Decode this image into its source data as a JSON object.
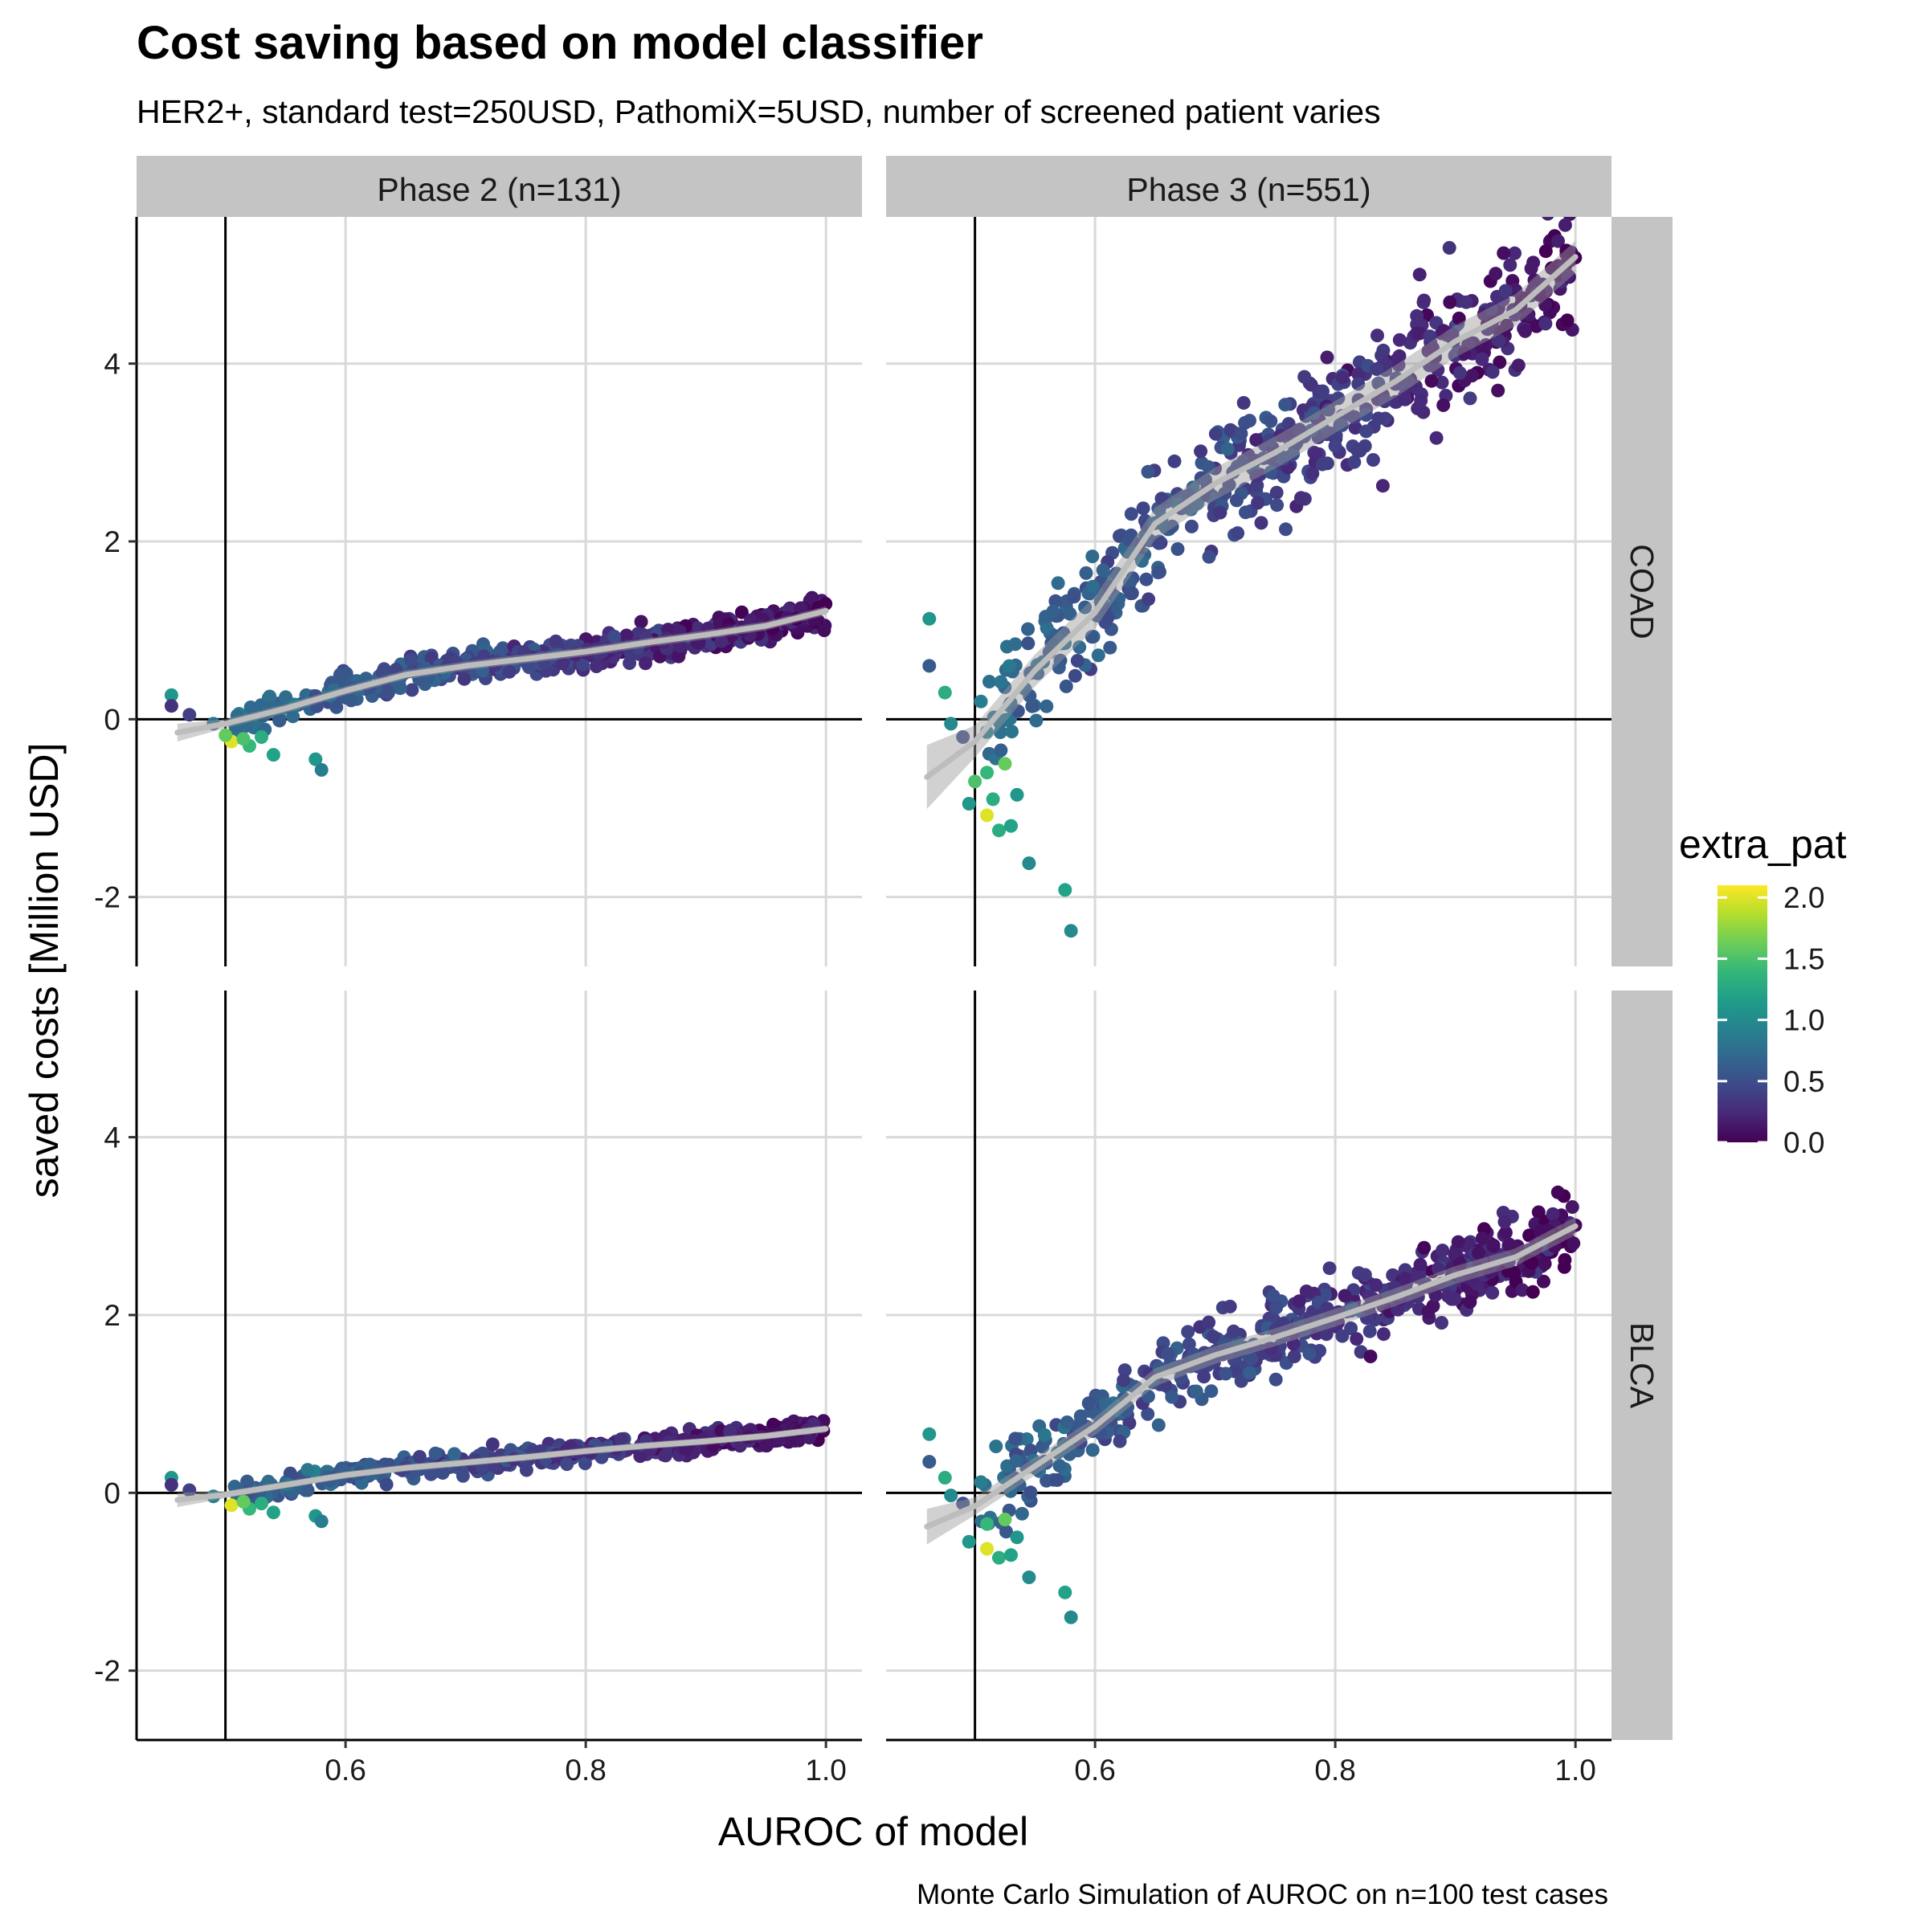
{
  "chart_data": {
    "type": "scatter",
    "title": "Cost saving based on model classifier",
    "subtitle": "HER2+, standard test=250USD, PathomiX=5USD, number of screened patient varies",
    "xlabel": "AUROC of model",
    "ylabel": "saved costs [Million USD]",
    "caption": "Monte Carlo Simulation of AUROC on n=100 test cases",
    "xlim": [
      0.426,
      1.03
    ],
    "ylim": [
      -2.78,
      5.65
    ],
    "x_ticks": [
      0.6,
      0.8,
      1.0
    ],
    "x_tick_labels": [
      "0.6",
      "0.8",
      "1.0"
    ],
    "y_ticks": [
      -2,
      0,
      2,
      4
    ],
    "y_tick_labels": [
      "-2",
      "0",
      "2",
      "4"
    ],
    "reference_lines": {
      "vline_x": 0.5,
      "hline_y": 0
    },
    "grid": true,
    "smoother": "loess with confidence band (grey)",
    "col_facets": [
      "Phase 2 (n=131)",
      "Phase 3 (n=551)"
    ],
    "row_facets": [
      "COAD",
      "BLCA"
    ],
    "color_scale": {
      "name": "extra_pat",
      "palette": "viridis",
      "range": [
        0,
        2.1
      ],
      "ticks": [
        0.0,
        0.5,
        1.0,
        1.5,
        2.0
      ],
      "tick_labels": [
        "0.0",
        "0.5",
        "1.0",
        "1.5",
        "2.0"
      ],
      "colors": [
        "#440154",
        "#482878",
        "#3E4A89",
        "#31688E",
        "#26828E",
        "#1F9E89",
        "#35B779",
        "#6DCD59",
        "#B4DE2C",
        "#FDE725"
      ]
    },
    "panels": [
      {
        "name": "Phase 2 COAD",
        "facet_col": "Phase 2 (n=131)",
        "facet_row": "COAD",
        "trend": {
          "x": [
            0.46,
            0.5,
            0.55,
            0.6,
            0.65,
            0.7,
            0.75,
            0.8,
            0.85,
            0.9,
            0.95,
            1.0
          ],
          "y": [
            -0.15,
            -0.05,
            0.12,
            0.32,
            0.5,
            0.6,
            0.68,
            0.76,
            0.86,
            0.95,
            1.05,
            1.22
          ]
        },
        "trend_band": 0.05,
        "scatter_band": 0.09,
        "outliers": [
          {
            "x": 0.455,
            "y": 0.27,
            "c": 1.1
          },
          {
            "x": 0.455,
            "y": 0.15,
            "c": 0.3
          },
          {
            "x": 0.47,
            "y": 0.05,
            "c": 0.4
          },
          {
            "x": 0.49,
            "y": -0.05,
            "c": 0.8
          },
          {
            "x": 0.505,
            "y": -0.25,
            "c": 2.0
          },
          {
            "x": 0.52,
            "y": -0.3,
            "c": 1.4
          },
          {
            "x": 0.53,
            "y": -0.2,
            "c": 1.3
          },
          {
            "x": 0.54,
            "y": -0.4,
            "c": 1.2
          },
          {
            "x": 0.575,
            "y": -0.45,
            "c": 1.1
          },
          {
            "x": 0.58,
            "y": -0.57,
            "c": 0.9
          },
          {
            "x": 0.5,
            "y": -0.18,
            "c": 1.6
          },
          {
            "x": 0.515,
            "y": -0.22,
            "c": 1.5
          }
        ]
      },
      {
        "name": "Phase 3 COAD",
        "facet_col": "Phase 3 (n=551)",
        "facet_row": "COAD",
        "trend": {
          "x": [
            0.46,
            0.5,
            0.55,
            0.6,
            0.65,
            0.7,
            0.75,
            0.8,
            0.85,
            0.9,
            0.95,
            1.0
          ],
          "y": [
            -0.65,
            -0.25,
            0.55,
            1.2,
            2.2,
            2.65,
            3.0,
            3.4,
            3.8,
            4.25,
            4.6,
            5.2
          ]
        },
        "trend_band": 0.18,
        "scatter_band": 0.36,
        "outliers": [
          {
            "x": 0.462,
            "y": 1.13,
            "c": 1.1
          },
          {
            "x": 0.462,
            "y": 0.6,
            "c": 0.6
          },
          {
            "x": 0.475,
            "y": 0.3,
            "c": 1.3
          },
          {
            "x": 0.48,
            "y": -0.05,
            "c": 1.0
          },
          {
            "x": 0.49,
            "y": -0.2,
            "c": 0.5
          },
          {
            "x": 0.495,
            "y": -0.95,
            "c": 1.1
          },
          {
            "x": 0.51,
            "y": -1.08,
            "c": 2.0
          },
          {
            "x": 0.51,
            "y": -0.6,
            "c": 1.4
          },
          {
            "x": 0.52,
            "y": -1.25,
            "c": 1.3
          },
          {
            "x": 0.525,
            "y": -0.5,
            "c": 1.6
          },
          {
            "x": 0.53,
            "y": -1.2,
            "c": 1.2
          },
          {
            "x": 0.535,
            "y": -0.85,
            "c": 1.1
          },
          {
            "x": 0.545,
            "y": -1.62,
            "c": 1.0
          },
          {
            "x": 0.575,
            "y": -1.92,
            "c": 1.2
          },
          {
            "x": 0.58,
            "y": -2.38,
            "c": 1.0
          },
          {
            "x": 0.5,
            "y": -0.7,
            "c": 1.5
          },
          {
            "x": 0.515,
            "y": -0.9,
            "c": 1.3
          },
          {
            "x": 0.505,
            "y": 0.2,
            "c": 0.9
          }
        ]
      },
      {
        "name": "Phase 2 BLCA",
        "facet_col": "Phase 2 (n=131)",
        "facet_row": "BLCA",
        "trend": {
          "x": [
            0.46,
            0.5,
            0.55,
            0.6,
            0.65,
            0.7,
            0.75,
            0.8,
            0.85,
            0.9,
            0.95,
            1.0
          ],
          "y": [
            -0.08,
            -0.02,
            0.09,
            0.2,
            0.28,
            0.34,
            0.4,
            0.47,
            0.53,
            0.58,
            0.64,
            0.72
          ]
        },
        "trend_band": 0.04,
        "scatter_band": 0.06,
        "outliers": [
          {
            "x": 0.455,
            "y": 0.17,
            "c": 1.1
          },
          {
            "x": 0.455,
            "y": 0.09,
            "c": 0.3
          },
          {
            "x": 0.47,
            "y": 0.03,
            "c": 0.4
          },
          {
            "x": 0.49,
            "y": -0.04,
            "c": 0.9
          },
          {
            "x": 0.505,
            "y": -0.14,
            "c": 2.0
          },
          {
            "x": 0.52,
            "y": -0.18,
            "c": 1.4
          },
          {
            "x": 0.53,
            "y": -0.12,
            "c": 1.3
          },
          {
            "x": 0.54,
            "y": -0.22,
            "c": 1.2
          },
          {
            "x": 0.575,
            "y": -0.26,
            "c": 1.1
          },
          {
            "x": 0.58,
            "y": -0.32,
            "c": 0.9
          },
          {
            "x": 0.515,
            "y": -0.1,
            "c": 1.6
          }
        ]
      },
      {
        "name": "Phase 3 BLCA",
        "facet_col": "Phase 3 (n=551)",
        "facet_row": "BLCA",
        "trend": {
          "x": [
            0.46,
            0.5,
            0.55,
            0.6,
            0.65,
            0.7,
            0.75,
            0.8,
            0.85,
            0.9,
            0.95,
            1.0
          ],
          "y": [
            -0.38,
            -0.15,
            0.3,
            0.75,
            1.3,
            1.55,
            1.75,
            1.97,
            2.2,
            2.45,
            2.65,
            3.0
          ]
        },
        "trend_band": 0.1,
        "scatter_band": 0.22,
        "outliers": [
          {
            "x": 0.462,
            "y": 0.66,
            "c": 1.1
          },
          {
            "x": 0.462,
            "y": 0.35,
            "c": 0.6
          },
          {
            "x": 0.475,
            "y": 0.17,
            "c": 1.3
          },
          {
            "x": 0.48,
            "y": -0.03,
            "c": 1.0
          },
          {
            "x": 0.49,
            "y": -0.12,
            "c": 0.5
          },
          {
            "x": 0.495,
            "y": -0.55,
            "c": 1.1
          },
          {
            "x": 0.51,
            "y": -0.63,
            "c": 2.0
          },
          {
            "x": 0.51,
            "y": -0.35,
            "c": 1.4
          },
          {
            "x": 0.52,
            "y": -0.73,
            "c": 1.3
          },
          {
            "x": 0.525,
            "y": -0.3,
            "c": 1.6
          },
          {
            "x": 0.53,
            "y": -0.7,
            "c": 1.2
          },
          {
            "x": 0.535,
            "y": -0.5,
            "c": 1.1
          },
          {
            "x": 0.545,
            "y": -0.95,
            "c": 1.0
          },
          {
            "x": 0.575,
            "y": -1.12,
            "c": 1.2
          },
          {
            "x": 0.58,
            "y": -1.4,
            "c": 1.0
          },
          {
            "x": 0.505,
            "y": 0.12,
            "c": 0.9
          }
        ]
      }
    ]
  }
}
